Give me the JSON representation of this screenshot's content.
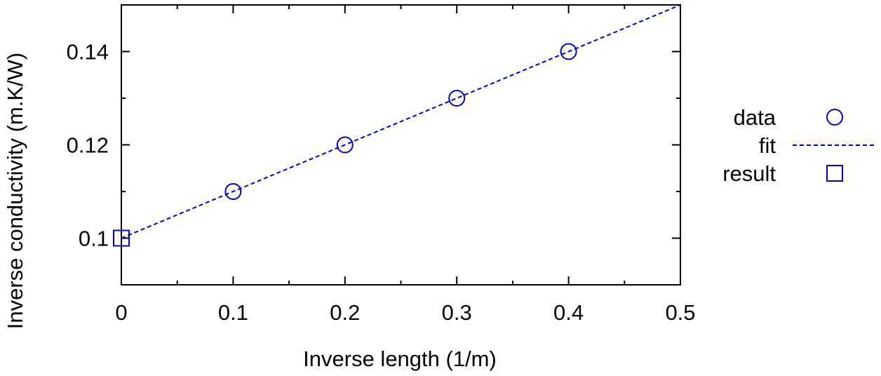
{
  "chart_data": {
    "type": "scatter",
    "xlabel": "Inverse length (1/m)",
    "ylabel": "Inverse conductivity (m.K/W)",
    "xlim": [
      0,
      0.5
    ],
    "ylim": [
      0.09,
      0.15
    ],
    "x_ticks": [
      "0",
      "0.1",
      "0.2",
      "0.3",
      "0.4",
      "0.5"
    ],
    "y_ticks": [
      "0.1",
      "0.12",
      "0.14"
    ],
    "x_tick_values": [
      0,
      0.1,
      0.2,
      0.3,
      0.4,
      0.5
    ],
    "y_tick_values": [
      0.1,
      0.12,
      0.14
    ],
    "x_minor_tick_values": [
      0.05,
      0.15,
      0.25,
      0.35,
      0.45
    ],
    "y_minor_tick_values": [
      0.09,
      0.11,
      0.13,
      0.15
    ],
    "grid": false,
    "legend_position": "right",
    "color": "#0000cc",
    "series": [
      {
        "name": "data",
        "marker": "circle",
        "points": [
          {
            "x": 0.1,
            "y": 0.11
          },
          {
            "x": 0.2,
            "y": 0.12
          },
          {
            "x": 0.3,
            "y": 0.13
          },
          {
            "x": 0.4,
            "y": 0.14
          }
        ]
      },
      {
        "name": "fit",
        "style": "dashed-line",
        "points": [
          {
            "x": 0.0,
            "y": 0.1
          },
          {
            "x": 0.5,
            "y": 0.15
          }
        ]
      },
      {
        "name": "result",
        "marker": "square",
        "points": [
          {
            "x": 0.0,
            "y": 0.1
          }
        ]
      }
    ]
  }
}
